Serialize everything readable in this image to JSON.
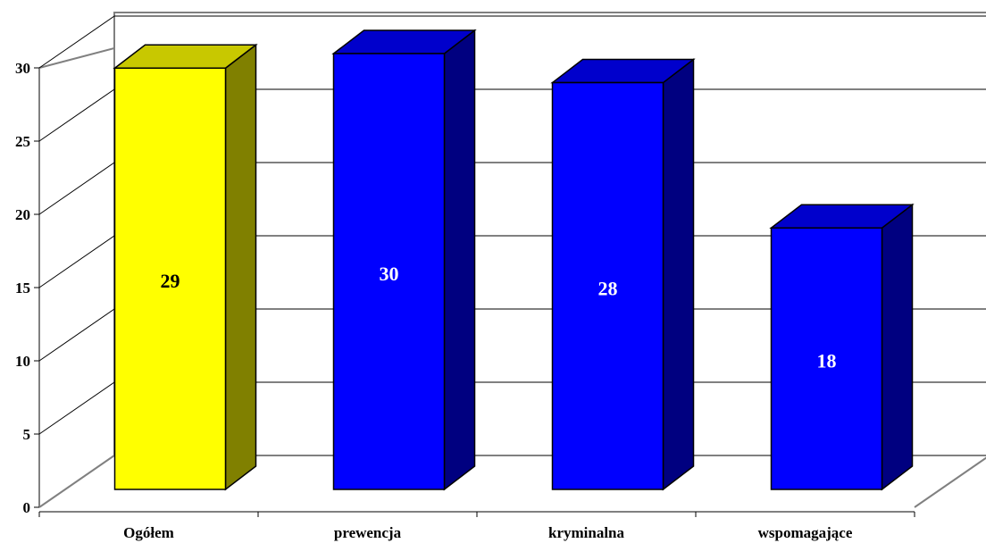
{
  "chart_data": {
    "type": "bar",
    "three_d": true,
    "categories": [
      "Ogółem",
      "prewencja",
      "kryminalna",
      "wspomagające"
    ],
    "values": [
      29,
      30,
      28,
      18
    ],
    "value_labels": [
      "29",
      "30",
      "28",
      "18"
    ],
    "ylim": [
      0,
      30
    ],
    "yticks": [
      0,
      5,
      10,
      15,
      20,
      25,
      30
    ],
    "ytick_labels": [
      "0",
      "5",
      "10",
      "15",
      "20",
      "25",
      "30"
    ],
    "grid": true,
    "legend": "none",
    "colors": {
      "highlight_front": "#ffff00",
      "highlight_top": "#c8c800",
      "highlight_side": "#808000",
      "highlight_label": "#000000",
      "bar_front": "#0000ff",
      "bar_top": "#0000cc",
      "bar_side": "#000080",
      "bar_label": "#ffffff",
      "grid": "#000000",
      "wall": "#808080"
    },
    "highlight_index": 0
  }
}
